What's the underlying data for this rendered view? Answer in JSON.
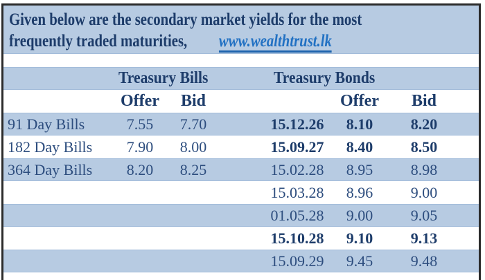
{
  "header": {
    "line1": "Given below are the secondary market yields for the most",
    "line2_prefix": "frequently traded maturities,",
    "link": "www.wealthtrust.lk"
  },
  "table": {
    "sections": {
      "bills": "Treasury Bills",
      "bonds": "Treasury Bonds"
    },
    "columns": {
      "offer": "Offer",
      "bid": "Bid"
    },
    "rows": [
      {
        "bill_label": "91 Day Bills",
        "bill_offer": "7.55",
        "bill_bid": "7.70",
        "bond_date": "15.12.26",
        "bond_offer": "8.10",
        "bond_bid": "8.20",
        "bond_bold": true
      },
      {
        "bill_label": "182 Day Bills",
        "bill_offer": "7.90",
        "bill_bid": "8.00",
        "bond_date": "15.09.27",
        "bond_offer": "8.40",
        "bond_bid": "8.50",
        "bond_bold": true
      },
      {
        "bill_label": "364 Day Bills",
        "bill_offer": "8.20",
        "bill_bid": "8.25",
        "bond_date": "15.02.28",
        "bond_offer": "8.95",
        "bond_bid": "8.98",
        "bond_bold": false
      },
      {
        "bond_date": "15.03.28",
        "bond_offer": "8.96",
        "bond_bid": "9.00",
        "bond_bold": false
      },
      {
        "bond_date": "01.05.28",
        "bond_offer": "9.00",
        "bond_bid": "9.05",
        "bond_bold": false
      },
      {
        "bond_date": "15.10.28",
        "bond_offer": "9.10",
        "bond_bid": "9.13",
        "bond_bold": true
      },
      {
        "bond_date": "15.09.29",
        "bond_offer": "9.45",
        "bond_bid": "9.48",
        "bond_bold": false
      }
    ]
  },
  "colors": {
    "band_blue": "#b7cbe2",
    "navy_bold": "#1d3c6a",
    "navy_regular": "#2d4d7e",
    "link_blue": "#2271c3",
    "link_underline": "#1d63ad",
    "border_dark": "#2b2b2b",
    "row_line": "#a3bcda"
  }
}
